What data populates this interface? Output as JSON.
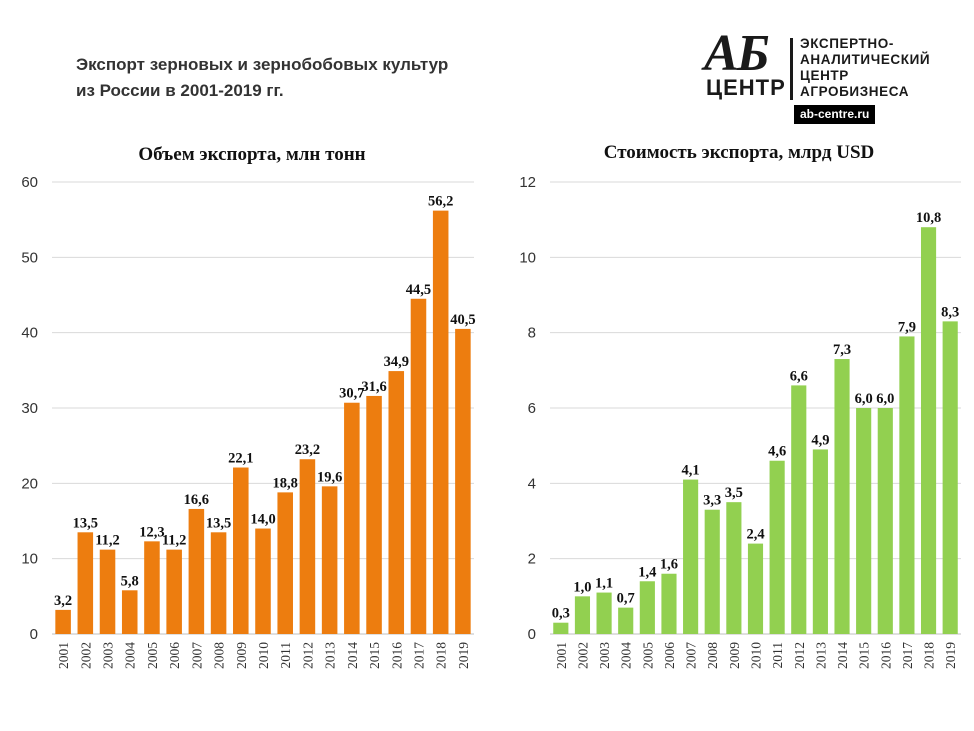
{
  "headline": {
    "line1": "Экспорт зерновых и зернобобовых культур",
    "line2": "из России в 2001-2019 гг."
  },
  "logo": {
    "mark_top": "АБ",
    "mark_bottom": "ЦЕНТР",
    "lines": [
      "ЭКСПЕРТНО-",
      "АНАЛИТИЧЕСКИЙ",
      "ЦЕНТР",
      "АГРОБИЗНЕСА"
    ],
    "url": "ab-centre.ru"
  },
  "chart_data": [
    {
      "type": "bar",
      "title": "Объем экспорта, млн тонн",
      "xlabel": "",
      "ylabel": "",
      "ylim": [
        0,
        60
      ],
      "yticks": [
        0,
        10,
        20,
        30,
        40,
        50,
        60
      ],
      "grid": true,
      "color": "#ed7d0f",
      "categories": [
        "2001",
        "2002",
        "2003",
        "2004",
        "2005",
        "2006",
        "2007",
        "2008",
        "2009",
        "2010",
        "2011",
        "2012",
        "2013",
        "2014",
        "2015",
        "2016",
        "2017",
        "2018",
        "2019"
      ],
      "values": [
        3.2,
        13.5,
        11.2,
        5.8,
        12.3,
        11.2,
        16.6,
        13.5,
        22.1,
        14.0,
        18.8,
        23.2,
        19.6,
        30.7,
        31.6,
        34.9,
        44.5,
        56.2,
        40.5
      ],
      "data_labels": [
        "3,2",
        "13,5",
        "11,2",
        "5,8",
        "12,3",
        "11,2",
        "16,6",
        "13,5",
        "22,1",
        "14,0",
        "18,8",
        "23,2",
        "19,6",
        "30,7",
        "31,6",
        "34,9",
        "44,5",
        "56,2",
        "40,5"
      ]
    },
    {
      "type": "bar",
      "title": "Стоимость экспорта, млрд USD",
      "xlabel": "",
      "ylabel": "",
      "ylim": [
        0,
        12
      ],
      "yticks": [
        0,
        2,
        4,
        6,
        8,
        10,
        12
      ],
      "grid": true,
      "color": "#92d050",
      "categories": [
        "2001",
        "2002",
        "2003",
        "2004",
        "2005",
        "2006",
        "2007",
        "2008",
        "2009",
        "2010",
        "2011",
        "2012",
        "2013",
        "2014",
        "2015",
        "2016",
        "2017",
        "2018",
        "2019"
      ],
      "values": [
        0.3,
        1.0,
        1.1,
        0.7,
        1.4,
        1.6,
        4.1,
        3.3,
        3.5,
        2.4,
        4.6,
        6.6,
        4.9,
        7.3,
        6.0,
        6.0,
        7.9,
        10.8,
        8.3
      ],
      "data_labels": [
        "0,3",
        "1,0",
        "1,1",
        "0,7",
        "1,4",
        "1,6",
        "4,1",
        "3,3",
        "3,5",
        "2,4",
        "4,6",
        "6,6",
        "4,9",
        "7,3",
        "6,0",
        "6,0",
        "7,9",
        "10,8",
        "8,3"
      ]
    }
  ]
}
